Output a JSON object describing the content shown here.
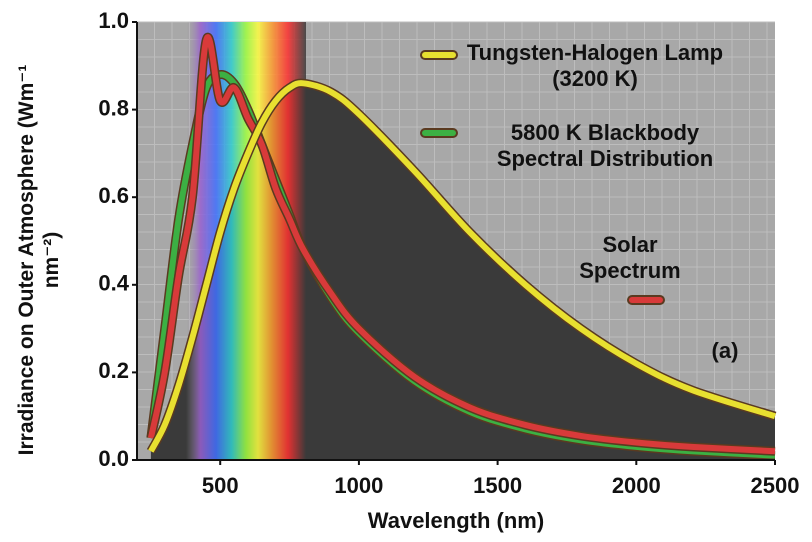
{
  "chart_data": {
    "type": "line",
    "xlabel": "Wavelength (nm)",
    "ylabel": "Irradiance on Outer Atmosphere (Wm⁻¹ nm⁻²)",
    "annotation": "(a)",
    "x": [
      250,
      300,
      350,
      400,
      450,
      500,
      550,
      600,
      650,
      700,
      750,
      800,
      900,
      1000,
      1200,
      1400,
      1600,
      1800,
      2000,
      2200,
      2500
    ],
    "series": [
      {
        "name": "Tungsten-Halogen Lamp (3200 K)",
        "color": "#e8e030",
        "values": [
          0.02,
          0.08,
          0.17,
          0.28,
          0.4,
          0.52,
          0.62,
          0.7,
          0.77,
          0.82,
          0.85,
          0.86,
          0.84,
          0.79,
          0.66,
          0.52,
          0.4,
          0.3,
          0.22,
          0.16,
          0.1
        ]
      },
      {
        "name": "5800 K Blackbody Spectral Distribution",
        "color": "#3cb043",
        "values": [
          0.05,
          0.3,
          0.55,
          0.72,
          0.85,
          0.88,
          0.86,
          0.8,
          0.72,
          0.64,
          0.56,
          0.48,
          0.37,
          0.29,
          0.18,
          0.11,
          0.07,
          0.045,
          0.03,
          0.02,
          0.01
        ]
      },
      {
        "name": "Solar Spectrum",
        "color": "#d83a3a",
        "values": [
          0.05,
          0.2,
          0.42,
          0.6,
          0.96,
          0.82,
          0.85,
          0.78,
          0.72,
          0.62,
          0.55,
          0.48,
          0.38,
          0.3,
          0.19,
          0.12,
          0.08,
          0.055,
          0.04,
          0.03,
          0.02
        ]
      }
    ],
    "xlim": [
      200,
      2500
    ],
    "xticks": [
      500,
      1000,
      1500,
      2000,
      2500
    ],
    "ylim": [
      0,
      1.0
    ],
    "yticks": [
      {
        "value": 0,
        "label": "0.0"
      },
      0.2,
      0.4,
      0.6,
      0.8,
      {
        "value": 1.0,
        "label": "1.0"
      }
    ],
    "grid": true
  }
}
